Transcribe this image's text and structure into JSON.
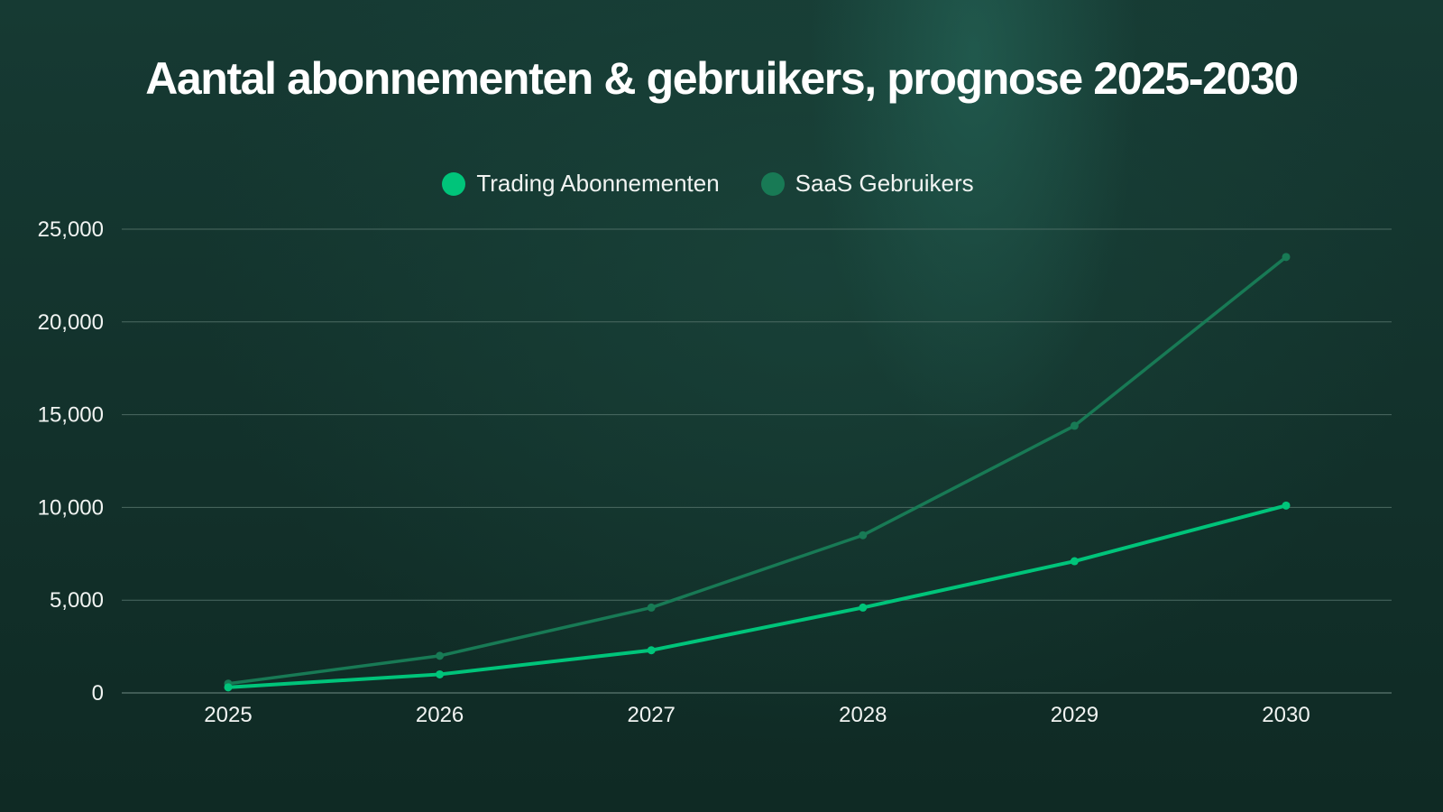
{
  "title": "Aantal abonnementen & gebruikers, prognose 2025-2030",
  "legend": {
    "items": [
      {
        "label": "Trading Abonnementen",
        "color": "#00c47a"
      },
      {
        "label": "SaaS Gebruikers",
        "color": "#187a55"
      }
    ]
  },
  "colors": {
    "background": "#13312b",
    "grid": "#4b6a62",
    "text": "#f1f4f2"
  },
  "chart_data": {
    "type": "line",
    "title": "Aantal abonnementen & gebruikers, prognose 2025-2030",
    "xlabel": "",
    "ylabel": "",
    "categories": [
      "2025",
      "2026",
      "2027",
      "2028",
      "2029",
      "2030"
    ],
    "series": [
      {
        "name": "Trading Abonnementen",
        "color": "#00c47a",
        "values": [
          300,
          1000,
          2300,
          4600,
          7100,
          10100
        ]
      },
      {
        "name": "SaaS Gebruikers",
        "color": "#187a55",
        "values": [
          500,
          2000,
          4600,
          8500,
          14400,
          23500
        ]
      }
    ],
    "ylim": [
      0,
      25000
    ],
    "yticks": [
      0,
      5000,
      10000,
      15000,
      20000,
      25000
    ],
    "ytick_labels": [
      "0",
      "5,000",
      "10,000",
      "15,000",
      "20,000",
      "25,000"
    ],
    "grid": true,
    "legend_position": "top"
  }
}
